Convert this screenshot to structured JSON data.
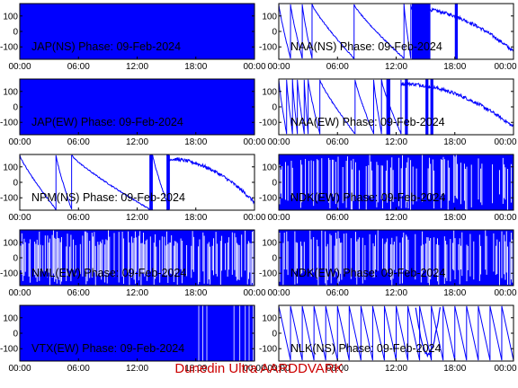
{
  "footer": "Dunedin Ultra AARDDVARK",
  "colors": {
    "trace": "#0000ff",
    "axis": "#000000",
    "footer": "#cc0000"
  },
  "chart_data": [
    {
      "type": "line",
      "title": "JAP(NS) Phase: 09-Feb-2024",
      "xticks": [
        "00:00",
        "06:00",
        "12:00",
        "18:00",
        "00:00"
      ],
      "yticks": [
        "100",
        "0",
        "-100"
      ],
      "xlim": [
        0,
        24
      ],
      "ylim": [
        -180,
        180
      ],
      "pattern": "saturated",
      "params": {}
    },
    {
      "type": "line",
      "title": "NAA(NS) Phase: 09-Feb-2024",
      "xticks": [
        "00:00",
        "06:00",
        "12:00",
        "18:00",
        "00:00"
      ],
      "yticks": [
        "100",
        "0",
        "-100"
      ],
      "xlim": [
        0,
        24
      ],
      "ylim": [
        -180,
        180
      ],
      "pattern": "ramps-drift",
      "params": {
        "ramps": [
          [
            0.0,
            1.2
          ],
          [
            1.2,
            2.4
          ],
          [
            2.4,
            3.4
          ],
          [
            3.4,
            7.7
          ],
          [
            7.7,
            12.8
          ],
          [
            12.8,
            13.5
          ]
        ],
        "drift": [
          13.5,
          24
        ],
        "bursts": [
          13.6,
          15.5,
          18.0,
          18.3
        ]
      }
    },
    {
      "type": "line",
      "title": "JAP(EW) Phase: 09-Feb-2024",
      "xticks": [
        "00:00",
        "06:00",
        "12:00",
        "18:00",
        "00:00"
      ],
      "yticks": [
        "100",
        "0",
        "-100"
      ],
      "xlim": [
        0,
        24
      ],
      "ylim": [
        -180,
        180
      ],
      "pattern": "saturated",
      "params": {}
    },
    {
      "type": "line",
      "title": "NAA(EW) Phase: 09-Feb-2024",
      "xticks": [
        "00:00",
        "06:00",
        "12:00",
        "18:00",
        "00:00"
      ],
      "yticks": [
        "100",
        "0",
        "-100"
      ],
      "xlim": [
        0,
        24
      ],
      "ylim": [
        -180,
        180
      ],
      "pattern": "ramps-drift",
      "params": {
        "ramps": [
          [
            0.0,
            0.8
          ],
          [
            0.8,
            1.4
          ],
          [
            1.4,
            1.9
          ],
          [
            1.9,
            2.6
          ],
          [
            2.6,
            3.0
          ],
          [
            3.0,
            4.2
          ],
          [
            4.2,
            7.8
          ],
          [
            7.8,
            9.7
          ],
          [
            9.7,
            10.5
          ],
          [
            10.5,
            12.5
          ]
        ],
        "drift": [
          12.5,
          24
        ],
        "bursts": [
          11.0,
          11.4,
          12.9,
          13.2,
          15.0,
          15.3,
          15.5,
          15.8
        ]
      }
    },
    {
      "type": "line",
      "title": "NPM(NS) Phase: 09-Feb-2024",
      "xticks": [
        "00:00",
        "06:00",
        "12:00",
        "18:00",
        "00:00"
      ],
      "yticks": [
        "100",
        "0",
        "-100"
      ],
      "xlim": [
        0,
        24
      ],
      "ylim": [
        -180,
        180
      ],
      "pattern": "ramps-drift",
      "params": {
        "ramps": [
          [
            0.0,
            3.7
          ],
          [
            3.7,
            5.3
          ],
          [
            5.3,
            13.3
          ],
          [
            13.6,
            15.3
          ]
        ],
        "drift": [
          15.3,
          24
        ],
        "bursts": [
          13.3,
          13.6,
          15.0,
          15.3
        ]
      }
    },
    {
      "type": "line",
      "title": "NDK(EW) Phase: 09-Feb-2024",
      "xticks": [
        "00:00",
        "06:00",
        "12:00",
        "18:00",
        "00:00"
      ],
      "yticks": [
        "100",
        "0",
        "-100"
      ],
      "xlim": [
        0,
        24
      ],
      "ylim": [
        -180,
        180
      ],
      "pattern": "dense-noise",
      "params": {
        "density": 0.55
      }
    },
    {
      "type": "line",
      "title": "NML(EW) Phase: 09-Feb-2024",
      "xticks": [
        "00:00",
        "06:00",
        "12:00",
        "18:00",
        "00:00"
      ],
      "yticks": [
        "100",
        "0",
        "-100"
      ],
      "xlim": [
        0,
        24
      ],
      "ylim": [
        -180,
        180
      ],
      "pattern": "dense-noise",
      "params": {
        "density": 0.35
      }
    },
    {
      "type": "line",
      "title": "NDK(EW) Phase: 09-Feb-2024",
      "xticks": [
        "00:00",
        "06:00",
        "12:00",
        "18:00",
        "00:00"
      ],
      "yticks": [
        "100",
        "0",
        "-100"
      ],
      "xlim": [
        0,
        24
      ],
      "ylim": [
        -180,
        180
      ],
      "pattern": "dense-noise",
      "params": {
        "density": 0.55
      }
    },
    {
      "type": "line",
      "title": "VTX(EW) Phase: 09-Feb-2024",
      "xticks": [
        "00:00",
        "06:00",
        "12:00",
        "18:00",
        "00:00"
      ],
      "yticks": [
        "100",
        "0",
        "-100"
      ],
      "xlim": [
        0,
        24
      ],
      "ylim": [
        -180,
        180
      ],
      "pattern": "saturated",
      "params": {
        "gaps": [
          18.3,
          19.6,
          21.9,
          22.1,
          22.5,
          23.9
        ]
      }
    },
    {
      "type": "line",
      "title": "NLK(NS) Phase: 09-Feb-2024",
      "xticks": [
        "00:00",
        "06:00",
        "12:00",
        "18:00",
        "00:00"
      ],
      "yticks": [
        "100",
        "0",
        "-100"
      ],
      "xlim": [
        0,
        24
      ],
      "ylim": [
        -180,
        180
      ],
      "pattern": "sawtooth",
      "params": {
        "period": 1.2,
        "dip": [
          14.0,
          16.5
        ]
      }
    }
  ]
}
